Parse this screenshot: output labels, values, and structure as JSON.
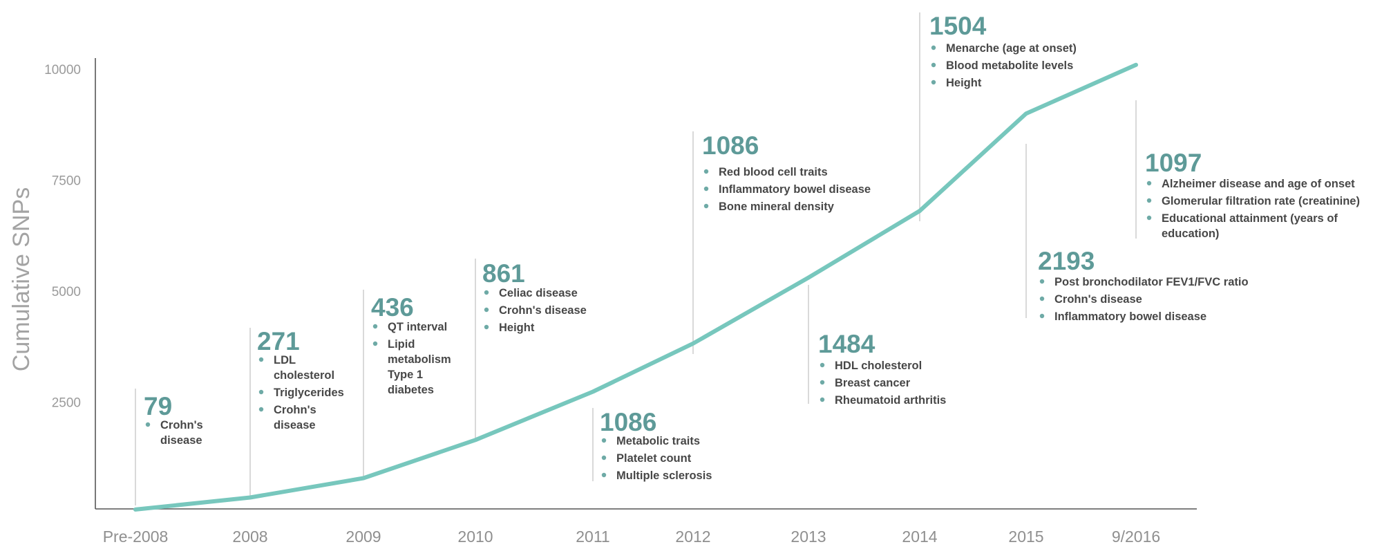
{
  "chart_data": {
    "type": "line",
    "ylabel": "Cumulative SNPs",
    "xlabel": "",
    "title": "",
    "yticks": [
      2500,
      5000,
      7500,
      10000
    ],
    "ylim": [
      0,
      10400
    ],
    "categories": [
      "Pre-2008",
      "2008",
      "2009",
      "2010",
      "2011",
      "2012",
      "2013",
      "2014",
      "2015",
      "9/2016"
    ],
    "series": [
      {
        "values": [
          79,
          350,
          786,
          1647,
          2733,
          3819,
          5303,
          6807,
          9000,
          10097
        ],
        "color": "#77c7bd"
      }
    ],
    "annotations": [
      {
        "count": "79",
        "items": [
          [
            "Crohn's",
            "disease"
          ]
        ]
      },
      {
        "count": "271",
        "items": [
          [
            "LDL",
            "cholesterol"
          ],
          [
            "Triglycerides"
          ],
          [
            "Crohn's",
            "disease"
          ]
        ]
      },
      {
        "count": "436",
        "items": [
          [
            "QT interval"
          ],
          [
            "Lipid",
            "metabolism",
            "Type 1",
            "diabetes"
          ]
        ]
      },
      {
        "count": "861",
        "items": [
          [
            "Celiac disease"
          ],
          [
            "Crohn's disease"
          ],
          [
            "Height"
          ]
        ]
      },
      {
        "count": "1086",
        "items": [
          [
            "Metabolic traits"
          ],
          [
            "Platelet count"
          ],
          [
            "Multiple sclerosis"
          ]
        ]
      },
      {
        "count": "1086",
        "items": [
          [
            "Red blood cell traits"
          ],
          [
            "Inflammatory bowel disease"
          ],
          [
            "Bone mineral density"
          ]
        ]
      },
      {
        "count": "1484",
        "items": [
          [
            "HDL cholesterol"
          ],
          [
            "Breast cancer"
          ],
          [
            "Rheumatoid arthritis"
          ]
        ]
      },
      {
        "count": "1504",
        "items": [
          [
            "Menarche (age at onset)"
          ],
          [
            "Blood metabolite levels"
          ],
          [
            "Height"
          ]
        ]
      },
      {
        "count": "2193",
        "items": [
          [
            "Post bronchodilator FEV1/FVC ratio"
          ],
          [
            "Crohn's disease"
          ],
          [
            "Inflammatory bowel disease"
          ]
        ]
      },
      {
        "count": "1097",
        "items": [
          [
            "Alzheimer disease and age of onset"
          ],
          [
            "Glomerular filtration rate (creatinine)"
          ],
          [
            "Educational attainment (years of",
            "education)"
          ]
        ]
      }
    ],
    "grid": false,
    "legend": "none"
  }
}
